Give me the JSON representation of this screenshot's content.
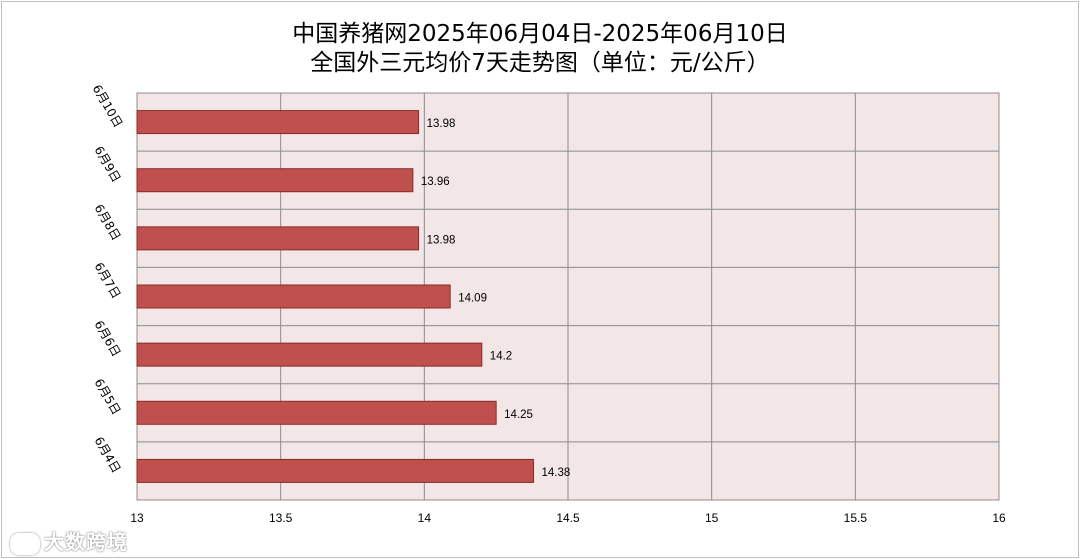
{
  "title_line1": "中国养猪网2025年06月04日-2025年06月10日",
  "title_line2": "全国外三元均价7天走势图（单位：元/公斤）",
  "watermark": "大数跨境",
  "colors": {
    "bar_fill": "#c0504d",
    "bar_stroke": "#8b2a28",
    "plot_bg": "#f2e6e6",
    "grid": "#8c8c8c"
  },
  "chart_data": {
    "type": "bar",
    "orientation": "horizontal",
    "title": "中国养猪网2025年06月04日-2025年06月10日 全国外三元均价7天走势图（单位：元/公斤）",
    "categories": [
      "6月10日",
      "6月9日",
      "6月8日",
      "6月7日",
      "6月6日",
      "6月5日",
      "6月4日"
    ],
    "values": [
      13.98,
      13.96,
      13.98,
      14.09,
      14.2,
      14.25,
      14.38
    ],
    "value_labels": [
      "13.98",
      "13.96",
      "13.98",
      "14.09",
      "14.2",
      "14.25",
      "14.38"
    ],
    "xlim": [
      13,
      16
    ],
    "xticks": [
      "13",
      "13.5",
      "14",
      "14.5",
      "15",
      "15.5",
      "16"
    ],
    "grid": true,
    "legend": "none"
  }
}
